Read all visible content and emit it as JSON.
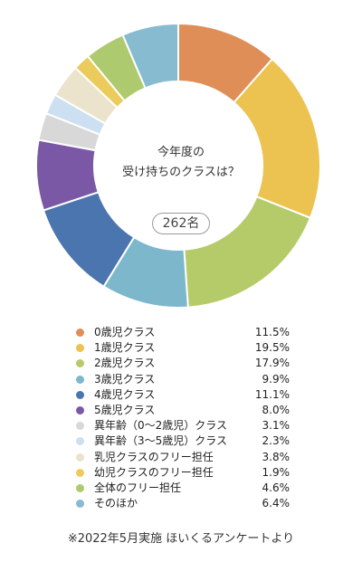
{
  "chart_data": {
    "type": "pie",
    "title_lines": [
      "今年度の",
      "受け持ちのクラスは？"
    ],
    "total_label": "262名",
    "categories": [
      "0歳児クラス",
      "1歳児クラス",
      "2歳児クラス",
      "3歳児クラス",
      "4歳児クラス",
      "5歳児クラス",
      "異年齢（0〜2歳児）クラス",
      "異年齢（3〜5歳児）クラス",
      "乳児クラスのフリー担任",
      "幼児クラスのフリー担任",
      "全体のフリー担任",
      "そのほか"
    ],
    "values": [
      11.5,
      19.5,
      17.9,
      9.9,
      11.1,
      8.0,
      3.1,
      2.3,
      3.8,
      1.9,
      4.6,
      6.4
    ],
    "value_labels": [
      "11.5%",
      "19.5%",
      "17.9%",
      "9.9%",
      "11.1%",
      "8.0%",
      "3.1%",
      "2.3%",
      "3.8%",
      "1.9%",
      "4.6%",
      "6.4%"
    ],
    "colors": [
      "#df8e57",
      "#ecc350",
      "#b5cb69",
      "#7cb7cc",
      "#4b75ae",
      "#7b58a6",
      "#d8d8d8",
      "#cde0f1",
      "#ece3cd",
      "#eccb5d",
      "#aeca6e",
      "#87bbd0"
    ],
    "legend_position": "bottom"
  },
  "footnote": "※2022年5月実施 ほいくるアンケートより"
}
